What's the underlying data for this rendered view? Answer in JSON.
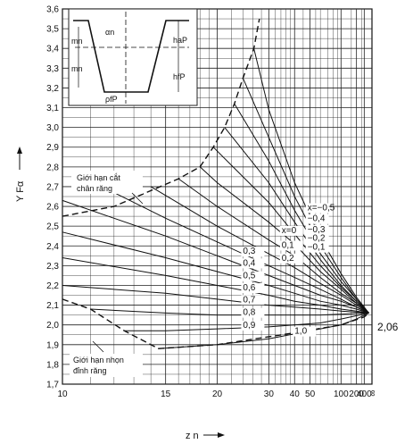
{
  "chart_data": {
    "type": "line",
    "ylabel": "Y Fα",
    "xlabel": "z n",
    "x_scale": "reciprocal",
    "xlim": [
      10,
      "∞"
    ],
    "ylim": [
      1.7,
      3.6
    ],
    "y_ticks": [
      "1,7",
      "1,8",
      "1,9",
      "2,0",
      "2,1",
      "2,2",
      "2,3",
      "2,4",
      "2,5",
      "2,6",
      "2,7",
      "2,8",
      "2,9",
      "3,0",
      "3,1",
      "3,2",
      "3,3",
      "3,4",
      "3,5",
      "3,6"
    ],
    "x_ticks": [
      "10",
      "15",
      "20",
      "30",
      "40",
      "50",
      "100",
      "200",
      "400",
      "∞"
    ],
    "convergence_label": "2,06",
    "convergence_value": 2.06,
    "annotations": {
      "upper_limit_line1": "Giới hạn cắt",
      "upper_limit_line2": "chân răng",
      "lower_limit_line1": "Giới hạn nhọn",
      "lower_limit_line2": "đỉnh răng"
    },
    "inset_labels": {
      "alpha_n": "αn",
      "h_aP": "haP",
      "h_fP": "hfP",
      "m_n_top": "mn",
      "m_n_bottom": "mn",
      "rho_fP": "ρfP"
    },
    "series": [
      {
        "label": "x=−0,5",
        "values": [
          [
            26.2,
            3.4
          ],
          [
            30,
            3.09
          ],
          [
            40,
            2.72
          ],
          [
            60,
            2.44
          ],
          [
            100,
            2.26
          ],
          [
            200,
            2.14
          ],
          [
            1000,
            2.06
          ]
        ]
      },
      {
        "label": "−0,4",
        "values": [
          [
            24,
            3.25
          ],
          [
            30,
            2.95
          ],
          [
            40,
            2.65
          ],
          [
            60,
            2.4
          ],
          [
            100,
            2.24
          ],
          [
            200,
            2.13
          ],
          [
            1000,
            2.06
          ]
        ]
      },
      {
        "label": "−0,3",
        "values": [
          [
            22.5,
            3.12
          ],
          [
            30,
            2.83
          ],
          [
            40,
            2.58
          ],
          [
            60,
            2.36
          ],
          [
            100,
            2.22
          ],
          [
            200,
            2.13
          ],
          [
            1000,
            2.06
          ]
        ]
      },
      {
        "label": "−0,2",
        "values": [
          [
            21,
            3.0
          ],
          [
            30,
            2.72
          ],
          [
            40,
            2.52
          ],
          [
            60,
            2.33
          ],
          [
            100,
            2.2
          ],
          [
            200,
            2.12
          ],
          [
            1000,
            2.06
          ]
        ]
      },
      {
        "label": "−0,1",
        "values": [
          [
            19.5,
            2.9
          ],
          [
            30,
            2.62
          ],
          [
            40,
            2.46
          ],
          [
            60,
            2.3
          ],
          [
            100,
            2.19
          ],
          [
            200,
            2.12
          ],
          [
            1000,
            2.06
          ]
        ]
      },
      {
        "label": "x=0",
        "values": [
          [
            18,
            2.8
          ],
          [
            20,
            2.72
          ],
          [
            30,
            2.52
          ],
          [
            40,
            2.41
          ],
          [
            60,
            2.27
          ],
          [
            100,
            2.18
          ],
          [
            200,
            2.11
          ],
          [
            1000,
            2.06
          ]
        ]
      },
      {
        "label": "0,1",
        "values": [
          [
            16,
            2.74
          ],
          [
            20,
            2.6
          ],
          [
            30,
            2.43
          ],
          [
            40,
            2.35
          ],
          [
            60,
            2.24
          ],
          [
            100,
            2.16
          ],
          [
            200,
            2.11
          ],
          [
            1000,
            2.06
          ]
        ]
      },
      {
        "label": "0,2",
        "values": [
          [
            14,
            2.7
          ],
          [
            20,
            2.5
          ],
          [
            30,
            2.36
          ],
          [
            40,
            2.29
          ],
          [
            60,
            2.21
          ],
          [
            100,
            2.15
          ],
          [
            200,
            2.1
          ],
          [
            1000,
            2.06
          ]
        ]
      },
      {
        "label": "0,3",
        "values": [
          [
            12,
            2.67
          ],
          [
            15,
            2.54
          ],
          [
            20,
            2.42
          ],
          [
            30,
            2.3
          ],
          [
            40,
            2.24
          ],
          [
            60,
            2.18
          ],
          [
            100,
            2.13
          ],
          [
            200,
            2.09
          ],
          [
            1000,
            2.06
          ]
        ]
      },
      {
        "label": "0,4",
        "values": [
          [
            10,
            2.63
          ],
          [
            15,
            2.45
          ],
          [
            20,
            2.35
          ],
          [
            30,
            2.25
          ],
          [
            40,
            2.2
          ],
          [
            60,
            2.15
          ],
          [
            100,
            2.12
          ],
          [
            200,
            2.09
          ],
          [
            1000,
            2.06
          ]
        ]
      },
      {
        "label": "0,5",
        "values": [
          [
            10,
            2.47
          ],
          [
            15,
            2.34
          ],
          [
            20,
            2.27
          ],
          [
            30,
            2.2
          ],
          [
            40,
            2.16
          ],
          [
            60,
            2.12
          ],
          [
            100,
            2.1
          ],
          [
            200,
            2.08
          ],
          [
            1000,
            2.06
          ]
        ]
      },
      {
        "label": "0,6",
        "values": [
          [
            10,
            2.34
          ],
          [
            15,
            2.25
          ],
          [
            20,
            2.2
          ],
          [
            30,
            2.15
          ],
          [
            40,
            2.12
          ],
          [
            60,
            2.1
          ],
          [
            100,
            2.08
          ],
          [
            200,
            2.07
          ],
          [
            1000,
            2.06
          ]
        ]
      },
      {
        "label": "0,7",
        "values": [
          [
            10,
            2.2
          ],
          [
            15,
            2.16
          ],
          [
            20,
            2.13
          ],
          [
            30,
            2.1
          ],
          [
            40,
            2.09
          ],
          [
            60,
            2.08
          ],
          [
            100,
            2.07
          ],
          [
            1000,
            2.06
          ]
        ]
      },
      {
        "label": "0,8",
        "values": [
          [
            11,
            2.08
          ],
          [
            15,
            2.06
          ],
          [
            20,
            2.05
          ],
          [
            30,
            2.05
          ],
          [
            60,
            2.05
          ],
          [
            1000,
            2.06
          ]
        ]
      },
      {
        "label": "0,9",
        "values": [
          [
            12.5,
            1.97
          ],
          [
            15,
            1.97
          ],
          [
            20,
            1.98
          ],
          [
            30,
            1.99
          ],
          [
            60,
            2.01
          ],
          [
            100,
            2.03
          ],
          [
            1000,
            2.06
          ]
        ]
      },
      {
        "label": "1,0",
        "values": [
          [
            14.5,
            1.88
          ],
          [
            20,
            1.9
          ],
          [
            30,
            1.93
          ],
          [
            60,
            1.98
          ],
          [
            100,
            2.0
          ],
          [
            200,
            2.03
          ],
          [
            1000,
            2.06
          ]
        ]
      }
    ],
    "limit_lines": [
      {
        "name": "root-undercut-limit",
        "values": [
          [
            10,
            2.55
          ],
          [
            12,
            2.6
          ],
          [
            14,
            2.68
          ],
          [
            16,
            2.74
          ],
          [
            18,
            2.8
          ],
          [
            19.5,
            2.9
          ],
          [
            21,
            3.0
          ],
          [
            22.5,
            3.12
          ],
          [
            24,
            3.25
          ],
          [
            26.2,
            3.4
          ],
          [
            27.5,
            3.55
          ]
        ]
      },
      {
        "name": "tip-pointed-limit",
        "values": [
          [
            10,
            2.13
          ],
          [
            11,
            2.08
          ],
          [
            12.5,
            1.97
          ],
          [
            14.5,
            1.88
          ],
          [
            20,
            1.9
          ],
          [
            40,
            1.96
          ],
          [
            100,
            2.0
          ],
          [
            400,
            2.04
          ],
          [
            1000,
            2.06
          ]
        ]
      }
    ]
  }
}
